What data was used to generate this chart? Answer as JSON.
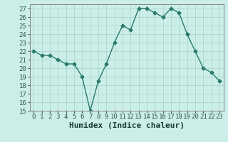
{
  "x": [
    0,
    1,
    2,
    3,
    4,
    5,
    6,
    7,
    8,
    9,
    10,
    11,
    12,
    13,
    14,
    15,
    16,
    17,
    18,
    19,
    20,
    21,
    22,
    23
  ],
  "y": [
    22,
    21.5,
    21.5,
    21,
    20.5,
    20.5,
    19,
    15,
    18.5,
    20.5,
    23,
    25,
    24.5,
    27,
    27,
    26.5,
    26,
    27,
    26.5,
    24,
    22,
    20,
    19.5,
    18.5
  ],
  "line_color": "#2a7b6a",
  "marker": "D",
  "marker_size": 2.5,
  "bg_color": "#cceee8",
  "grid_color": "#aad8d0",
  "xlabel": "Humidex (Indice chaleur)",
  "xlabel_fontsize": 8,
  "ylim": [
    15,
    27.5
  ],
  "xlim": [
    -0.5,
    23.5
  ],
  "yticks": [
    15,
    16,
    17,
    18,
    19,
    20,
    21,
    22,
    23,
    24,
    25,
    26,
    27
  ],
  "xticks": [
    0,
    1,
    2,
    3,
    4,
    5,
    6,
    7,
    8,
    9,
    10,
    11,
    12,
    13,
    14,
    15,
    16,
    17,
    18,
    19,
    20,
    21,
    22,
    23
  ],
  "tick_fontsize": 6.5,
  "line_width": 1.0
}
